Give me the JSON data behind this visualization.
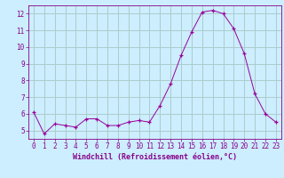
{
  "xlabel": "Windchill (Refroidissement éolien,°C)",
  "x_values": [
    0,
    1,
    2,
    3,
    4,
    5,
    6,
    7,
    8,
    9,
    10,
    11,
    12,
    13,
    14,
    15,
    16,
    17,
    18,
    19,
    20,
    21,
    22,
    23
  ],
  "y_values": [
    6.1,
    4.8,
    5.4,
    5.3,
    5.2,
    5.7,
    5.7,
    5.3,
    5.3,
    5.5,
    5.6,
    5.5,
    6.5,
    7.8,
    9.5,
    10.9,
    12.1,
    12.2,
    12.0,
    11.1,
    9.6,
    7.2,
    6.0,
    5.5
  ],
  "line_color": "#990099",
  "marker": "+",
  "bg_color": "#cceeff",
  "grid_color": "#aacccc",
  "ylim": [
    4.5,
    12.5
  ],
  "yticks": [
    5,
    6,
    7,
    8,
    9,
    10,
    11,
    12
  ],
  "xlim": [
    -0.5,
    23.5
  ],
  "xticks": [
    0,
    1,
    2,
    3,
    4,
    5,
    6,
    7,
    8,
    9,
    10,
    11,
    12,
    13,
    14,
    15,
    16,
    17,
    18,
    19,
    20,
    21,
    22,
    23
  ],
  "tick_color": "#880088",
  "label_color": "#880088",
  "font_size": 5.5,
  "label_font_size": 6.0
}
